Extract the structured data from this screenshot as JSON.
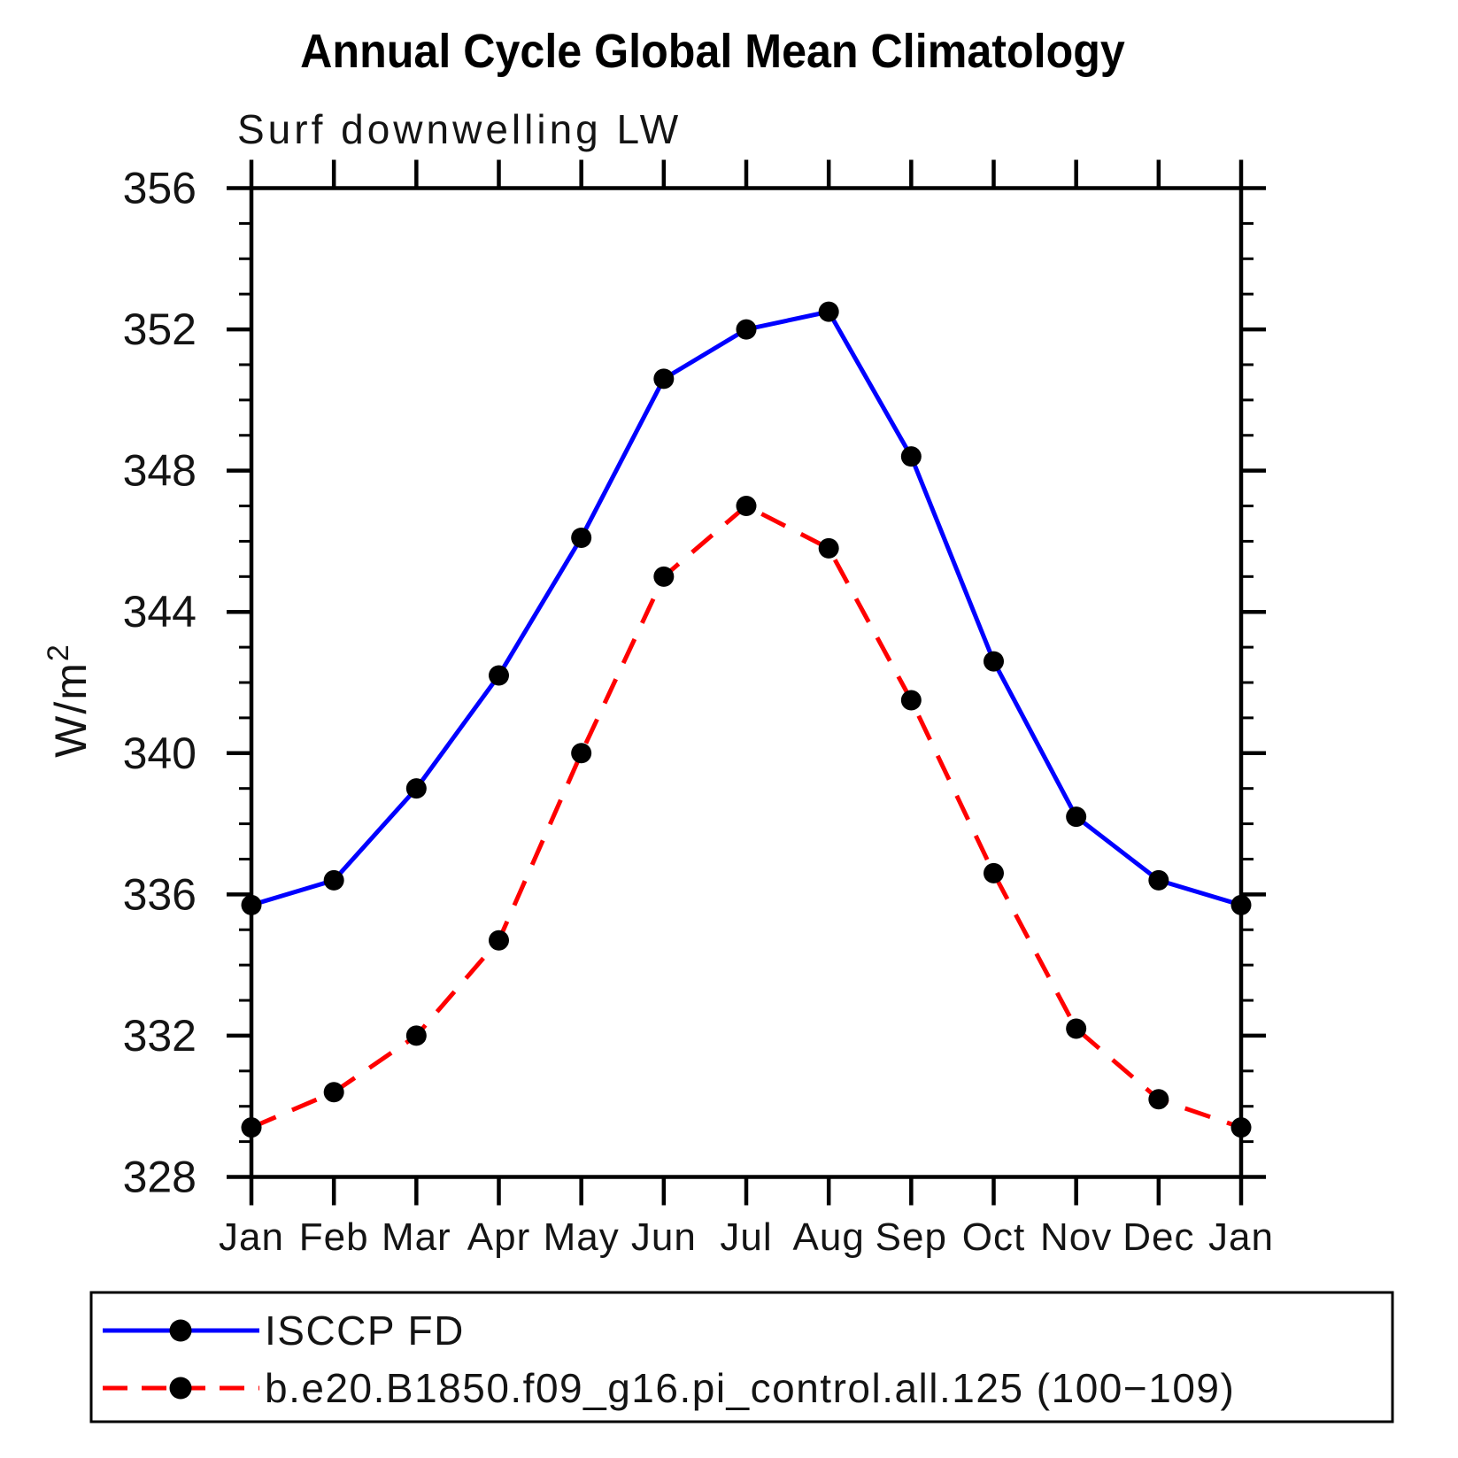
{
  "page": {
    "background": "#ffffff"
  },
  "chart_data": {
    "type": "line",
    "title": "Annual Cycle Global Mean Climatology",
    "subtitle": "Surf downwelling LW",
    "ylabel": "W/m²",
    "xlabel": "",
    "categories": [
      "Jan",
      "Feb",
      "Mar",
      "Apr",
      "May",
      "Jun",
      "Jul",
      "Aug",
      "Sep",
      "Oct",
      "Nov",
      "Dec",
      "Jan"
    ],
    "ylim": [
      328,
      356
    ],
    "ytick_step": 4,
    "ytick_minor_step": 1,
    "grid": "off",
    "legend_position": "bottom-left",
    "marker_color": "#000000",
    "axis_color": "#000000",
    "series": [
      {
        "name": "ISCCP FD",
        "color": "#0000ff",
        "style": "solid",
        "values": [
          335.7,
          336.4,
          339.0,
          342.2,
          346.1,
          350.6,
          352.0,
          352.5,
          348.4,
          342.6,
          338.2,
          336.4,
          335.7
        ]
      },
      {
        "name": "b.e20.B1850.f09_g16.pi_control.all.125 (100−109)",
        "color": "#ff0000",
        "style": "dashed",
        "values": [
          329.4,
          330.4,
          332.0,
          334.7,
          340.0,
          345.0,
          347.0,
          345.8,
          341.5,
          336.6,
          332.2,
          330.2,
          329.4
        ]
      }
    ]
  }
}
